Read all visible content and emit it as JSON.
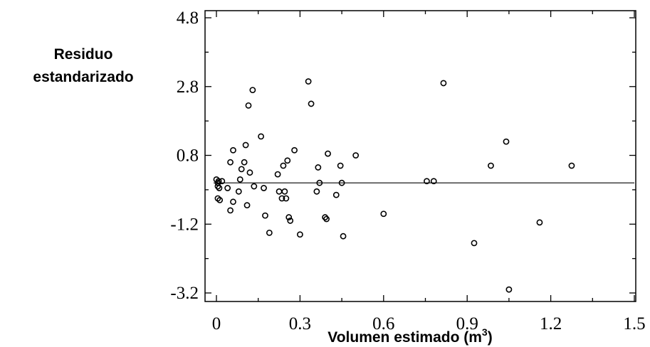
{
  "chart_data": {
    "type": "scatter",
    "xlabel": "Volumen estimado (m",
    "xlabel_superscript": "3",
    "xlabel_suffix": ")",
    "ylabel_lines": [
      "Residuo",
      "estandarizado"
    ],
    "xlim": [
      0,
      1.5
    ],
    "ylim": [
      -3.2,
      4.8
    ],
    "xticks": [
      0,
      0.3,
      0.6,
      0.9,
      1.2,
      1.5
    ],
    "xtick_labels": [
      "0",
      "0.3",
      "0.6",
      "0.9",
      "1.2",
      "1.5"
    ],
    "yticks": [
      -3.2,
      -1.2,
      0.8,
      2.8,
      4.8
    ],
    "ytick_labels": [
      "-3.2",
      "-1.2",
      "0.8",
      "2.8",
      "4.8"
    ],
    "reference_line_y": 0.0,
    "grid": false,
    "marker": "open-circle",
    "colors": {
      "marker": "#000000",
      "line": "#000000",
      "frame": "#000000"
    },
    "points": [
      [
        0.0,
        0.1
      ],
      [
        0.005,
        0.0
      ],
      [
        0.005,
        -0.1
      ],
      [
        0.005,
        -0.45
      ],
      [
        0.008,
        0.05
      ],
      [
        0.01,
        -0.15
      ],
      [
        0.012,
        -0.5
      ],
      [
        0.02,
        0.05
      ],
      [
        0.04,
        -0.15
      ],
      [
        0.05,
        -0.8
      ],
      [
        0.05,
        0.6
      ],
      [
        0.06,
        -0.55
      ],
      [
        0.06,
        0.95
      ],
      [
        0.08,
        -0.25
      ],
      [
        0.085,
        0.1
      ],
      [
        0.09,
        0.4
      ],
      [
        0.1,
        0.6
      ],
      [
        0.105,
        1.1
      ],
      [
        0.11,
        -0.65
      ],
      [
        0.115,
        2.25
      ],
      [
        0.12,
        0.3
      ],
      [
        0.13,
        2.7
      ],
      [
        0.135,
        -0.1
      ],
      [
        0.16,
        1.35
      ],
      [
        0.17,
        -0.15
      ],
      [
        0.175,
        -0.95
      ],
      [
        0.19,
        -1.45
      ],
      [
        0.22,
        0.25
      ],
      [
        0.225,
        -0.25
      ],
      [
        0.235,
        -0.45
      ],
      [
        0.24,
        0.5
      ],
      [
        0.245,
        -0.25
      ],
      [
        0.25,
        -0.45
      ],
      [
        0.255,
        0.65
      ],
      [
        0.26,
        -1.0
      ],
      [
        0.265,
        -1.1
      ],
      [
        0.28,
        0.95
      ],
      [
        0.3,
        -1.5
      ],
      [
        0.33,
        2.95
      ],
      [
        0.34,
        2.3
      ],
      [
        0.36,
        -0.25
      ],
      [
        0.365,
        0.45
      ],
      [
        0.37,
        0.0
      ],
      [
        0.39,
        -1.0
      ],
      [
        0.395,
        -1.05
      ],
      [
        0.4,
        0.85
      ],
      [
        0.43,
        -0.35
      ],
      [
        0.445,
        0.5
      ],
      [
        0.45,
        0.0
      ],
      [
        0.455,
        -1.55
      ],
      [
        0.5,
        0.8
      ],
      [
        0.6,
        -0.9
      ],
      [
        0.755,
        0.05
      ],
      [
        0.78,
        0.05
      ],
      [
        0.815,
        2.9
      ],
      [
        0.925,
        -1.75
      ],
      [
        0.985,
        0.5
      ],
      [
        1.04,
        1.2
      ],
      [
        1.05,
        -3.1
      ],
      [
        1.16,
        -1.15
      ],
      [
        1.275,
        0.5
      ]
    ]
  }
}
